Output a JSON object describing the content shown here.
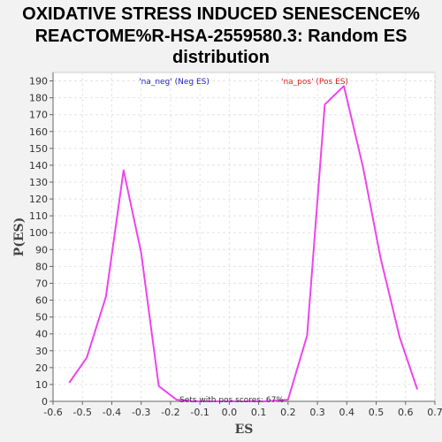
{
  "chart_data": {
    "type": "line",
    "title_lines": [
      "OXIDATIVE STRESS INDUCED SENESCENCE%",
      "REACTOME%R-HSA-2559580.3: Random ES",
      "distribution"
    ],
    "xlabel": "ES",
    "ylabel": "P(ES)",
    "xlim": [
      -0.6,
      0.7
    ],
    "ylim": [
      0,
      195
    ],
    "xticks": [
      -0.6,
      -0.5,
      -0.4,
      -0.3,
      -0.2,
      -0.1,
      0.0,
      0.1,
      0.2,
      0.3,
      0.4,
      0.5,
      0.6,
      0.7
    ],
    "xtick_labels": [
      "-0.6",
      "-0.5",
      "-0.4",
      "-0.3",
      "-0.2",
      "-0.1",
      "0.0",
      "0.1",
      "0.2",
      "0.3",
      "0.4",
      "0.5",
      "0.6",
      "0.7"
    ],
    "yticks": [
      0,
      10,
      20,
      30,
      40,
      50,
      60,
      70,
      80,
      90,
      100,
      110,
      120,
      130,
      140,
      150,
      160,
      170,
      180,
      190
    ],
    "ytick_labels": [
      "0",
      "10",
      "20",
      "30",
      "40",
      "50",
      "60",
      "70",
      "80",
      "90",
      "100",
      "110",
      "120",
      "130",
      "140",
      "150",
      "160",
      "170",
      "180",
      "190"
    ],
    "grid": true,
    "line_color": "#ee44ee",
    "series": [
      {
        "x": [
          -0.545,
          -0.485,
          -0.42,
          -0.36,
          -0.3,
          -0.24,
          -0.18,
          -0.12,
          -0.06,
          0.0,
          0.06,
          0.12,
          0.2,
          0.265,
          0.325,
          0.39,
          0.455,
          0.515,
          0.58,
          0.64
        ],
        "y": [
          11,
          26,
          62,
          137,
          88,
          9,
          1,
          0,
          0,
          0,
          0,
          0,
          1,
          39,
          176,
          187,
          139,
          85,
          38,
          7
        ]
      }
    ],
    "legend": [
      {
        "label": "'na_neg' (Neg ES)",
        "color": "#2222cc"
      },
      {
        "label": "'na_pos' (Pos ES)",
        "color": "#dd2222"
      }
    ],
    "annotation": "Sets with pos scores: 67%"
  }
}
